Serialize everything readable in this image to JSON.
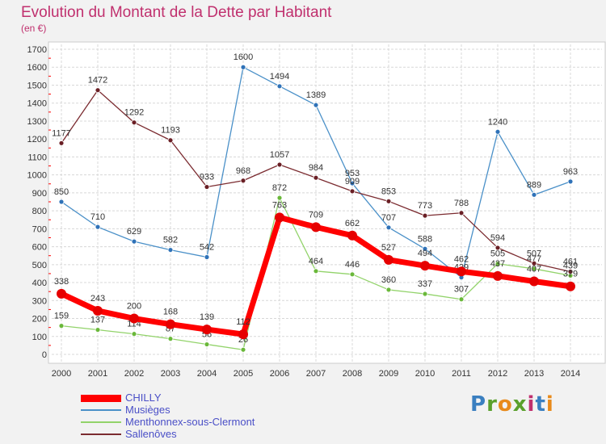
{
  "header": {
    "title": "Evolution du Montant de la Dette par Habitant",
    "subtitle": "(en €)"
  },
  "logo": {
    "text": "Proxiti",
    "letters": [
      "P",
      "r",
      "o",
      "x",
      "i",
      "t",
      "i"
    ],
    "colors": [
      "#3a7fc0",
      "#5aa02c",
      "#e88a1a",
      "#5aa02c",
      "#c0306e",
      "#3a7fc0",
      "#e88a1a"
    ]
  },
  "chart_data": {
    "type": "line",
    "title": "Evolution du Montant de la Dette par Habitant",
    "subtitle": "(en €)",
    "x": [
      "2000",
      "2001",
      "2002",
      "2003",
      "2004",
      "2005",
      "2006",
      "2007",
      "2008",
      "2009",
      "2010",
      "2011",
      "2012",
      "2013",
      "2014"
    ],
    "yticks": [
      0,
      100,
      200,
      300,
      400,
      500,
      600,
      700,
      800,
      900,
      1000,
      1100,
      1200,
      1300,
      1400,
      1500,
      1600,
      1700
    ],
    "ylim": [
      0,
      1700
    ],
    "grid": true,
    "legend_position": "bottom-left",
    "series": [
      {
        "name": "Musièges",
        "color": "#4a90c8",
        "dot": "#2f72b8",
        "values": [
          850,
          710,
          629,
          582,
          542,
          1600,
          1494,
          1389,
          953,
          707,
          588,
          429,
          1240,
          889,
          963
        ]
      },
      {
        "name": "Menthonnex-sous-Clermont",
        "color": "#92d36a",
        "dot": "#6ab83a",
        "values": [
          159,
          137,
          114,
          87,
          56,
          26,
          872,
          464,
          446,
          360,
          337,
          307,
          505,
          477,
          439
        ]
      },
      {
        "name": "Sallenôves",
        "color": "#7b2b30",
        "dot": "#6a1f25",
        "values": [
          1177,
          1472,
          1292,
          1193,
          933,
          968,
          1057,
          984,
          909,
          853,
          773,
          788,
          594,
          507,
          461
        ]
      },
      {
        "name": "CHILLY",
        "color": "#ff0000",
        "dot": "#e60000",
        "values": [
          338,
          243,
          200,
          168,
          139,
          112,
          763,
          709,
          662,
          527,
          494,
          462,
          437,
          407,
          379
        ]
      }
    ],
    "legend": [
      {
        "name": "CHILLY",
        "color": "#ff0000"
      },
      {
        "name": "Musièges",
        "color": "#4a90c8"
      },
      {
        "name": "Menthonnex-sous-Clermont",
        "color": "#92d36a"
      },
      {
        "name": "Sallenôves",
        "color": "#7b2b30"
      }
    ]
  }
}
